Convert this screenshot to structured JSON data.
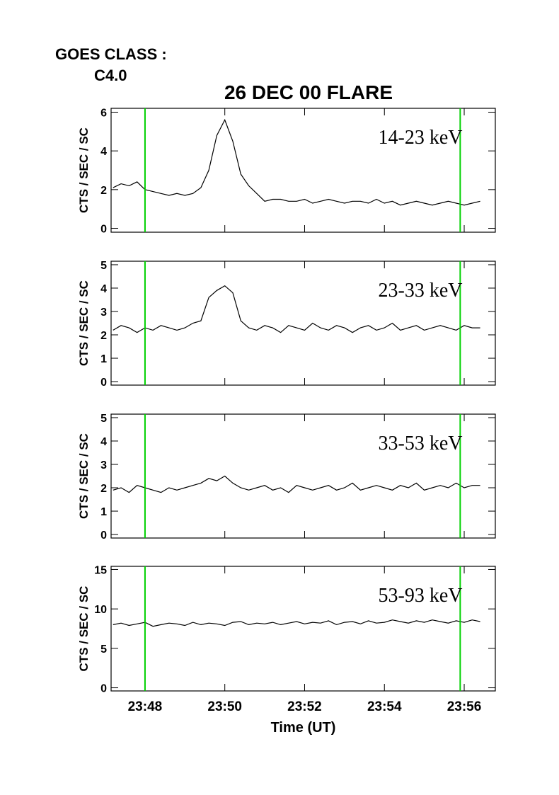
{
  "goes_label": "GOES CLASS :",
  "goes_class": "C4.0",
  "title": "26 DEC 00 FLARE",
  "chart_data": [
    {
      "type": "line",
      "annotation": "14-23 keV",
      "ylabel": "CTS / SEC / SC",
      "color": "#000000",
      "xlim": [
        1427.15,
        1436.78
      ],
      "ylim": [
        -0.2,
        6.2
      ],
      "yticks": [
        0,
        2,
        4,
        6
      ],
      "vlines": [
        1428.0,
        1435.9
      ],
      "vline_color": "#00d000",
      "x": [
        1427.2,
        1427.4,
        1427.6,
        1427.8,
        1428.0,
        1428.2,
        1428.4,
        1428.6,
        1428.8,
        1429.0,
        1429.2,
        1429.4,
        1429.6,
        1429.8,
        1430.0,
        1430.2,
        1430.4,
        1430.6,
        1430.8,
        1431.0,
        1431.2,
        1431.4,
        1431.6,
        1431.8,
        1432.0,
        1432.2,
        1432.4,
        1432.6,
        1432.8,
        1433.0,
        1433.2,
        1433.4,
        1433.6,
        1433.8,
        1434.0,
        1434.2,
        1434.4,
        1434.6,
        1434.8,
        1435.0,
        1435.2,
        1435.4,
        1435.6,
        1435.8,
        1436.0,
        1436.2,
        1436.4
      ],
      "values": [
        2.1,
        2.3,
        2.2,
        2.4,
        2.0,
        1.9,
        1.8,
        1.7,
        1.8,
        1.7,
        1.8,
        2.1,
        3.0,
        4.8,
        5.6,
        4.5,
        2.8,
        2.2,
        1.8,
        1.4,
        1.5,
        1.5,
        1.4,
        1.4,
        1.5,
        1.3,
        1.4,
        1.5,
        1.4,
        1.3,
        1.4,
        1.4,
        1.3,
        1.5,
        1.3,
        1.4,
        1.2,
        1.3,
        1.4,
        1.3,
        1.2,
        1.3,
        1.4,
        1.3,
        1.2,
        1.3,
        1.4
      ]
    },
    {
      "type": "line",
      "annotation": "23-33 keV",
      "ylabel": "CTS / SEC / SC",
      "color": "#000000",
      "xlim": [
        1427.15,
        1436.78
      ],
      "ylim": [
        -0.15,
        5.15
      ],
      "yticks": [
        0,
        1,
        2,
        3,
        4,
        5
      ],
      "vlines": [
        1428.0,
        1435.9
      ],
      "vline_color": "#00d000",
      "x": [
        1427.2,
        1427.4,
        1427.6,
        1427.8,
        1428.0,
        1428.2,
        1428.4,
        1428.6,
        1428.8,
        1429.0,
        1429.2,
        1429.4,
        1429.6,
        1429.8,
        1430.0,
        1430.2,
        1430.4,
        1430.6,
        1430.8,
        1431.0,
        1431.2,
        1431.4,
        1431.6,
        1431.8,
        1432.0,
        1432.2,
        1432.4,
        1432.6,
        1432.8,
        1433.0,
        1433.2,
        1433.4,
        1433.6,
        1433.8,
        1434.0,
        1434.2,
        1434.4,
        1434.6,
        1434.8,
        1435.0,
        1435.2,
        1435.4,
        1435.6,
        1435.8,
        1436.0,
        1436.2,
        1436.4
      ],
      "values": [
        2.2,
        2.4,
        2.3,
        2.1,
        2.3,
        2.2,
        2.4,
        2.3,
        2.2,
        2.3,
        2.5,
        2.6,
        3.6,
        3.9,
        4.1,
        3.8,
        2.6,
        2.3,
        2.2,
        2.4,
        2.3,
        2.1,
        2.4,
        2.3,
        2.2,
        2.5,
        2.3,
        2.2,
        2.4,
        2.3,
        2.1,
        2.3,
        2.4,
        2.2,
        2.3,
        2.5,
        2.2,
        2.3,
        2.4,
        2.2,
        2.3,
        2.4,
        2.3,
        2.2,
        2.4,
        2.3,
        2.3
      ]
    },
    {
      "type": "line",
      "annotation": "33-53 keV",
      "ylabel": "CTS / SEC / SC",
      "color": "#000000",
      "xlim": [
        1427.15,
        1436.78
      ],
      "ylim": [
        -0.15,
        5.15
      ],
      "yticks": [
        0,
        1,
        2,
        3,
        4,
        5
      ],
      "vlines": [
        1428.0,
        1435.9
      ],
      "vline_color": "#00d000",
      "x": [
        1427.2,
        1427.4,
        1427.6,
        1427.8,
        1428.0,
        1428.2,
        1428.4,
        1428.6,
        1428.8,
        1429.0,
        1429.2,
        1429.4,
        1429.6,
        1429.8,
        1430.0,
        1430.2,
        1430.4,
        1430.6,
        1430.8,
        1431.0,
        1431.2,
        1431.4,
        1431.6,
        1431.8,
        1432.0,
        1432.2,
        1432.4,
        1432.6,
        1432.8,
        1433.0,
        1433.2,
        1433.4,
        1433.6,
        1433.8,
        1434.0,
        1434.2,
        1434.4,
        1434.6,
        1434.8,
        1435.0,
        1435.2,
        1435.4,
        1435.6,
        1435.8,
        1436.0,
        1436.2,
        1436.4
      ],
      "values": [
        1.9,
        2.0,
        1.8,
        2.1,
        2.0,
        1.9,
        1.8,
        2.0,
        1.9,
        2.0,
        2.1,
        2.2,
        2.4,
        2.3,
        2.5,
        2.2,
        2.0,
        1.9,
        2.0,
        2.1,
        1.9,
        2.0,
        1.8,
        2.1,
        2.0,
        1.9,
        2.0,
        2.1,
        1.9,
        2.0,
        2.2,
        1.9,
        2.0,
        2.1,
        2.0,
        1.9,
        2.1,
        2.0,
        2.2,
        1.9,
        2.0,
        2.1,
        2.0,
        2.2,
        2.0,
        2.1,
        2.1
      ]
    },
    {
      "type": "line",
      "annotation": "53-93 keV",
      "ylabel": "CTS / SEC / SC",
      "xlabel": "Time (UT)",
      "color": "#000000",
      "xlim": [
        1427.15,
        1436.78
      ],
      "ylim": [
        -0.4,
        15.4
      ],
      "yticks": [
        0,
        5,
        10,
        15
      ],
      "xticks": [
        {
          "value": 1428,
          "label": "23:48"
        },
        {
          "value": 1430,
          "label": "23:50"
        },
        {
          "value": 1432,
          "label": "23:52"
        },
        {
          "value": 1434,
          "label": "23:54"
        },
        {
          "value": 1436,
          "label": "23:56"
        }
      ],
      "vlines": [
        1428.0,
        1435.9
      ],
      "vline_color": "#00d000",
      "x": [
        1427.2,
        1427.4,
        1427.6,
        1427.8,
        1428.0,
        1428.2,
        1428.4,
        1428.6,
        1428.8,
        1429.0,
        1429.2,
        1429.4,
        1429.6,
        1429.8,
        1430.0,
        1430.2,
        1430.4,
        1430.6,
        1430.8,
        1431.0,
        1431.2,
        1431.4,
        1431.6,
        1431.8,
        1432.0,
        1432.2,
        1432.4,
        1432.6,
        1432.8,
        1433.0,
        1433.2,
        1433.4,
        1433.6,
        1433.8,
        1434.0,
        1434.2,
        1434.4,
        1434.6,
        1434.8,
        1435.0,
        1435.2,
        1435.4,
        1435.6,
        1435.8,
        1436.0,
        1436.2,
        1436.4
      ],
      "values": [
        8.0,
        8.2,
        7.9,
        8.1,
        8.3,
        7.8,
        8.0,
        8.2,
        8.1,
        7.9,
        8.3,
        8.0,
        8.2,
        8.1,
        7.9,
        8.3,
        8.4,
        8.0,
        8.2,
        8.1,
        8.3,
        8.0,
        8.2,
        8.4,
        8.1,
        8.3,
        8.2,
        8.5,
        8.0,
        8.3,
        8.4,
        8.1,
        8.5,
        8.2,
        8.3,
        8.6,
        8.4,
        8.2,
        8.5,
        8.3,
        8.6,
        8.4,
        8.2,
        8.5,
        8.3,
        8.6,
        8.4
      ]
    }
  ]
}
